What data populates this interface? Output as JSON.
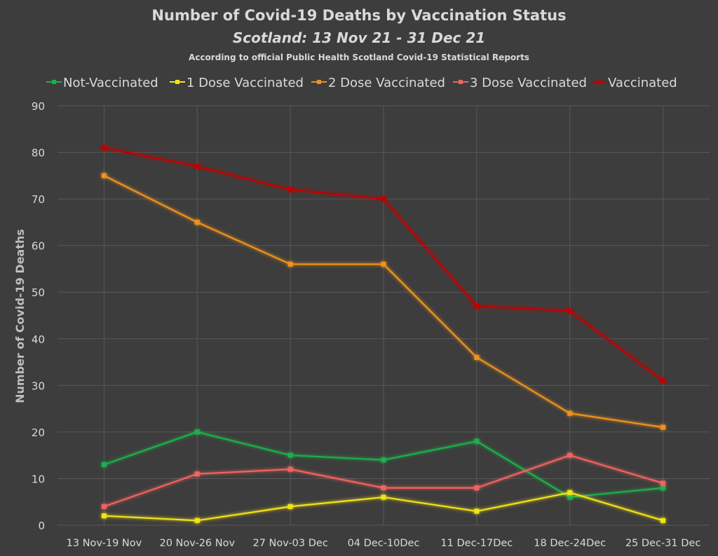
{
  "chart_data": {
    "type": "line",
    "title": "Number of Covid-19 Deaths by Vaccination Status",
    "subtitle": "Scotland: 13 Nov 21 - 31 Dec 21",
    "note": "According to official Public Health Scotland Covid-19 Statistical Reports",
    "ylabel": "Number of Covid-19 Deaths",
    "xlabel": "",
    "ylim": [
      0,
      90
    ],
    "yticks": [
      "0",
      "10",
      "20",
      "30",
      "40",
      "50",
      "60",
      "70",
      "80",
      "90"
    ],
    "grid": true,
    "legend_position": "top",
    "categories": [
      "13 Nov-19 Nov",
      "20 Nov-26 Nov",
      "27 Nov-03 Dec",
      "04 Dec-10Dec",
      "11 Dec-17Dec",
      "18 Dec-24Dec",
      "25 Dec-31 Dec"
    ],
    "series": [
      {
        "name": "Not-Vaccinated",
        "color": "#1fb04a",
        "values": [
          13,
          20,
          15,
          14,
          18,
          6,
          8
        ]
      },
      {
        "name": "1 Dose Vaccinated",
        "color": "#f2e218",
        "values": [
          2,
          1,
          4,
          6,
          3,
          7,
          1
        ]
      },
      {
        "name": "2 Dose Vaccinated",
        "color": "#f0921a",
        "values": [
          75,
          65,
          56,
          56,
          36,
          24,
          21
        ]
      },
      {
        "name": "3 Dose Vaccinated",
        "color": "#f2645e",
        "values": [
          4,
          11,
          12,
          8,
          8,
          15,
          9
        ]
      },
      {
        "name": "Vaccinated",
        "color": "#c00000",
        "values": [
          81,
          77,
          72,
          70,
          47,
          46,
          31
        ]
      }
    ]
  }
}
